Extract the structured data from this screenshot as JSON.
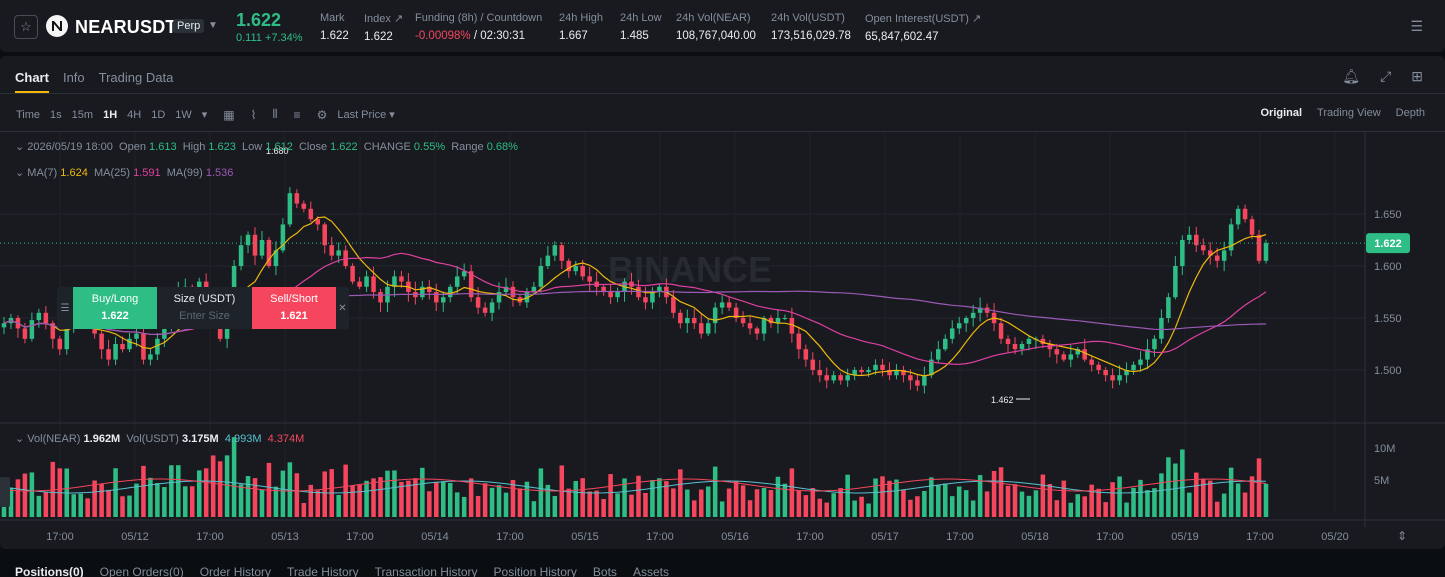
{
  "ticker": {
    "symbol": "NEARUSDT",
    "badge": "Perp",
    "last_price": "1.622",
    "change": "0.111 +7.34%",
    "stats": [
      {
        "label": "Mark",
        "value": "1.622"
      },
      {
        "label": "Index ↗",
        "value": "1.622"
      },
      {
        "label": "Funding (8h) / Countdown",
        "value_neg": "-0.00098%",
        "value": " / 02:30:31"
      },
      {
        "label": "24h High",
        "value": "1.667"
      },
      {
        "label": "24h Low",
        "value": "1.485"
      },
      {
        "label": "24h Vol(NEAR)",
        "value": "108,767,040.00"
      },
      {
        "label": "24h Vol(USDT)",
        "value": "173,516,029.78"
      },
      {
        "label": "Open Interest(USDT) ↗",
        "value": "65,847,602.47"
      }
    ]
  },
  "tabs": [
    "Chart",
    "Info",
    "Trading Data"
  ],
  "toolbar": {
    "time_label": "Time",
    "intervals": [
      "1s",
      "15m",
      "1H",
      "4H",
      "1D",
      "1W"
    ],
    "active_interval": "1H",
    "price_type": "Last Price"
  },
  "view_options": [
    "Original",
    "Trading View",
    "Depth"
  ],
  "ohlc_legend": {
    "date": "2026/05/19 18:00",
    "open_label": "Open",
    "open": "1.613",
    "high_label": "High",
    "high": "1.623",
    "low_label": "Low",
    "low": "1.612",
    "close_label": "Close",
    "close": "1.622",
    "change_label": "CHANGE",
    "change": "0.55%",
    "range_label": "Range",
    "range": "0.68%"
  },
  "ma_legend": {
    "ma7_label": "MA(7)",
    "ma7": "1.624",
    "ma25_label": "MA(25)",
    "ma25": "1.591",
    "ma99_label": "MA(99)",
    "ma99": "1.536"
  },
  "vol_legend": {
    "vol_near_label": "Vol(NEAR)",
    "vol_near": "1.962M",
    "vol_usdt_label": "Vol(USDT)",
    "vol_usdt": "3.175M",
    "ma_a": "4.993M",
    "ma_b": "4.374M"
  },
  "order_widget": {
    "buy_label": "Buy/Long",
    "buy_price": "1.622",
    "size_label": "Size (USDT)",
    "size_placeholder": "Enter Size",
    "sell_label": "Sell/Short",
    "sell_price": "1.621"
  },
  "watermark": "BINANCE",
  "colors": {
    "up": "#2ebd85",
    "down": "#f6465d",
    "ma7": "#f0b90b",
    "ma25": "#e040a0",
    "ma99": "#9b59b6"
  },
  "chart_data": {
    "type": "candlestick",
    "y_ticks": [
      "1.650",
      "1.600",
      "1.550",
      "1.500"
    ],
    "current_price_tag": "1.622",
    "high_marker": "1.680",
    "low_marker": "1.462",
    "vol_ticks": [
      "10M",
      "5M"
    ],
    "x_ticks": [
      "17:00",
      "05/12",
      "17:00",
      "05/13",
      "17:00",
      "05/14",
      "17:00",
      "05/15",
      "17:00",
      "05/16",
      "17:00",
      "05/17",
      "17:00",
      "05/18",
      "17:00",
      "05/19",
      "17:00",
      "05/20"
    ],
    "ylim": [
      1.45,
      1.7
    ],
    "close_series": [
      1.545,
      1.55,
      1.54,
      1.53,
      1.548,
      1.555,
      1.545,
      1.53,
      1.52,
      1.54,
      1.548,
      1.555,
      1.55,
      1.535,
      1.52,
      1.51,
      1.525,
      1.52,
      1.53,
      1.535,
      1.51,
      1.515,
      1.53,
      1.545,
      1.56,
      1.575,
      1.58,
      1.57,
      1.585,
      1.575,
      1.545,
      1.53,
      1.56,
      1.6,
      1.62,
      1.63,
      1.61,
      1.625,
      1.6,
      1.615,
      1.64,
      1.67,
      1.66,
      1.655,
      1.645,
      1.64,
      1.62,
      1.61,
      1.615,
      1.6,
      1.585,
      1.58,
      1.59,
      1.575,
      1.565,
      1.58,
      1.59,
      1.585,
      1.575,
      1.57,
      1.58,
      1.575,
      1.565,
      1.57,
      1.58,
      1.59,
      1.595,
      1.57,
      1.56,
      1.555,
      1.565,
      1.575,
      1.58,
      1.57,
      1.565,
      1.575,
      1.58,
      1.6,
      1.61,
      1.62,
      1.605,
      1.595,
      1.6,
      1.59,
      1.585,
      1.58,
      1.575,
      1.57,
      1.575,
      1.585,
      1.58,
      1.57,
      1.565,
      1.575,
      1.58,
      1.57,
      1.555,
      1.545,
      1.55,
      1.545,
      1.535,
      1.545,
      1.56,
      1.565,
      1.56,
      1.55,
      1.545,
      1.54,
      1.535,
      1.55,
      1.545,
      1.55,
      1.55,
      1.535,
      1.52,
      1.51,
      1.5,
      1.495,
      1.49,
      1.495,
      1.49,
      1.495,
      1.5,
      1.498,
      1.5,
      1.505,
      1.5,
      1.495,
      1.5,
      1.495,
      1.49,
      1.485,
      1.495,
      1.51,
      1.52,
      1.53,
      1.54,
      1.545,
      1.55,
      1.555,
      1.56,
      1.555,
      1.545,
      1.53,
      1.525,
      1.52,
      1.525,
      1.53,
      1.53,
      1.525,
      1.52,
      1.515,
      1.51,
      1.515,
      1.52,
      1.51,
      1.505,
      1.5,
      1.495,
      1.49,
      1.495,
      1.5,
      1.505,
      1.51,
      1.52,
      1.53,
      1.55,
      1.57,
      1.6,
      1.625,
      1.63,
      1.62,
      1.615,
      1.61,
      1.605,
      1.615,
      1.64,
      1.655,
      1.645,
      1.63,
      1.605,
      1.622
    ]
  }
}
